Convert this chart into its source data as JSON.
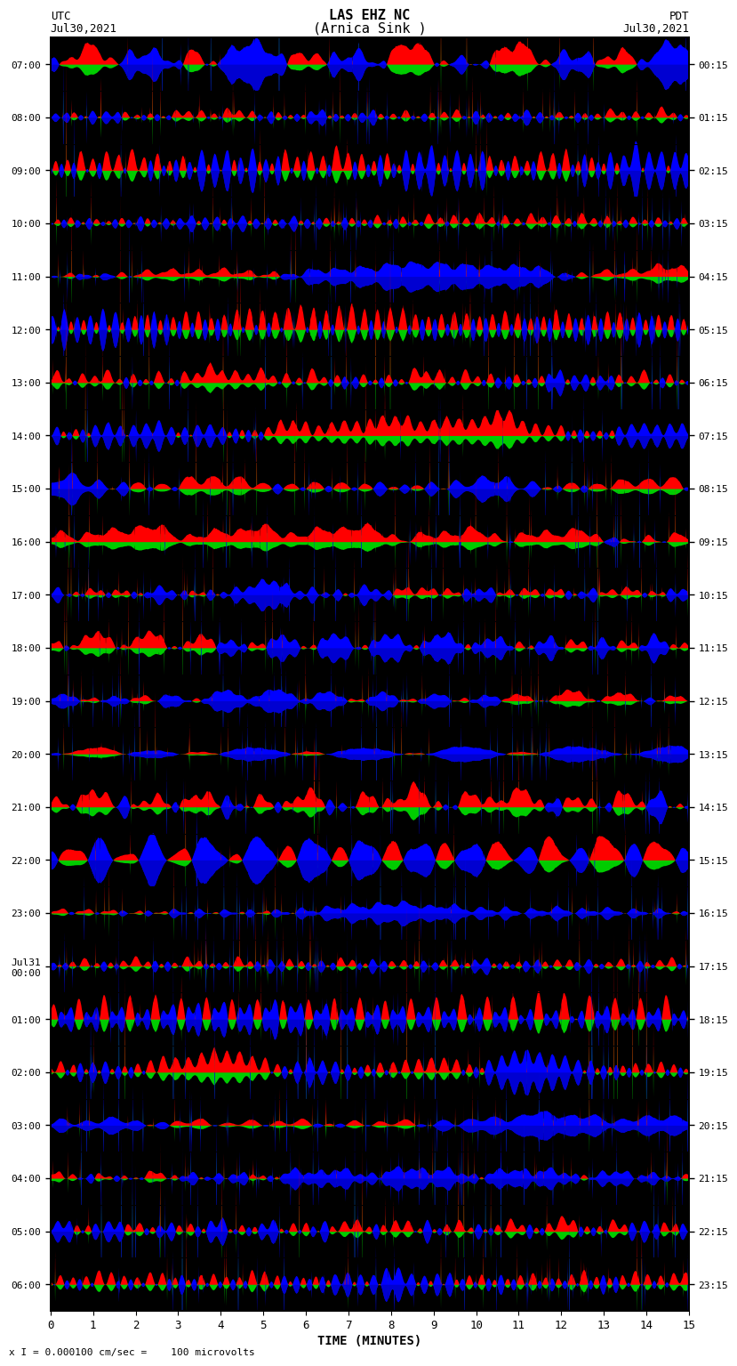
{
  "title_line1": "LAS EHZ NC",
  "title_line2": "(Arnica Sink )",
  "scale_text": "I = 0.000100 cm/sec",
  "bottom_scale_text": "x I = 0.000100 cm/sec =    100 microvolts",
  "left_label": "UTC",
  "left_date": "Jul30,2021",
  "right_label": "PDT",
  "right_date": "Jul30,2021",
  "xlabel": "TIME (MINUTES)",
  "xlim": [
    0,
    15
  ],
  "n_rows": 24,
  "utc_times": [
    "07:00",
    "08:00",
    "09:00",
    "10:00",
    "11:00",
    "12:00",
    "13:00",
    "14:00",
    "15:00",
    "16:00",
    "17:00",
    "18:00",
    "19:00",
    "20:00",
    "21:00",
    "22:00",
    "23:00",
    "Jul31\n00:00",
    "01:00",
    "02:00",
    "03:00",
    "04:00",
    "05:00",
    "06:00"
  ],
  "pdt_times": [
    "00:15",
    "01:15",
    "02:15",
    "03:15",
    "04:15",
    "05:15",
    "06:15",
    "07:15",
    "08:15",
    "09:15",
    "10:15",
    "11:15",
    "12:15",
    "13:15",
    "14:15",
    "15:15",
    "16:15",
    "17:15",
    "18:15",
    "19:15",
    "20:15",
    "21:15",
    "22:15",
    "23:15"
  ],
  "seed": 1234
}
